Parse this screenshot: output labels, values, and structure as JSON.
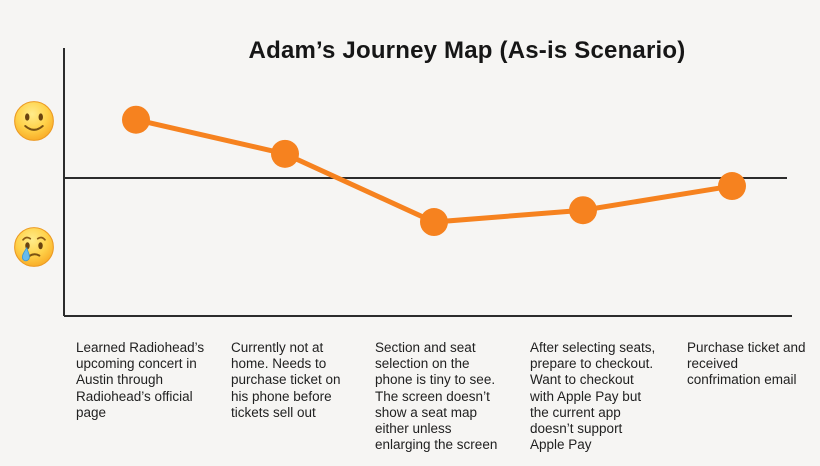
{
  "title": "Adam’s Journey Map (As-is Scenario)",
  "colors": {
    "accent_orange": "#F6821F",
    "axis": "#2C2C2C",
    "background": "#F6F5F3",
    "text": "#212121",
    "emoji_yellow": "#FFD24A",
    "tear_blue": "#67BBEE"
  },
  "y_axis": {
    "positive_marker_icon": "slightly-smiling-face-emoji",
    "negative_marker_icon": "crying-face-emoji"
  },
  "chart_data": {
    "type": "line",
    "title": "Adam’s Journey Map (As-is Scenario)",
    "x": [
      1,
      2,
      3,
      4,
      5
    ],
    "values": [
      0.94,
      0.39,
      -0.71,
      -0.52,
      -0.13
    ],
    "baseline": 0,
    "ylim": [
      -2.2,
      2.1
    ],
    "emotion_scale": {
      "positive_anchor": 1,
      "negative_anchor": -1
    },
    "grid": false,
    "legend": "none",
    "steps": [
      "Learned Radiohead’s upcoming concert in Austin through Radiohead’s official page",
      "Currently not at home. Needs to purchase ticket on his phone before tickets sell out",
      "Section and seat selection on the phone is tiny to see. The screen doesn’t show a seat map either unless enlarging the screen",
      "After selecting seats, prepare to checkout. Want to checkout with Apple Pay but the current app doesn’t support Apple Pay",
      "Purchase ticket and received confrimation email"
    ]
  }
}
